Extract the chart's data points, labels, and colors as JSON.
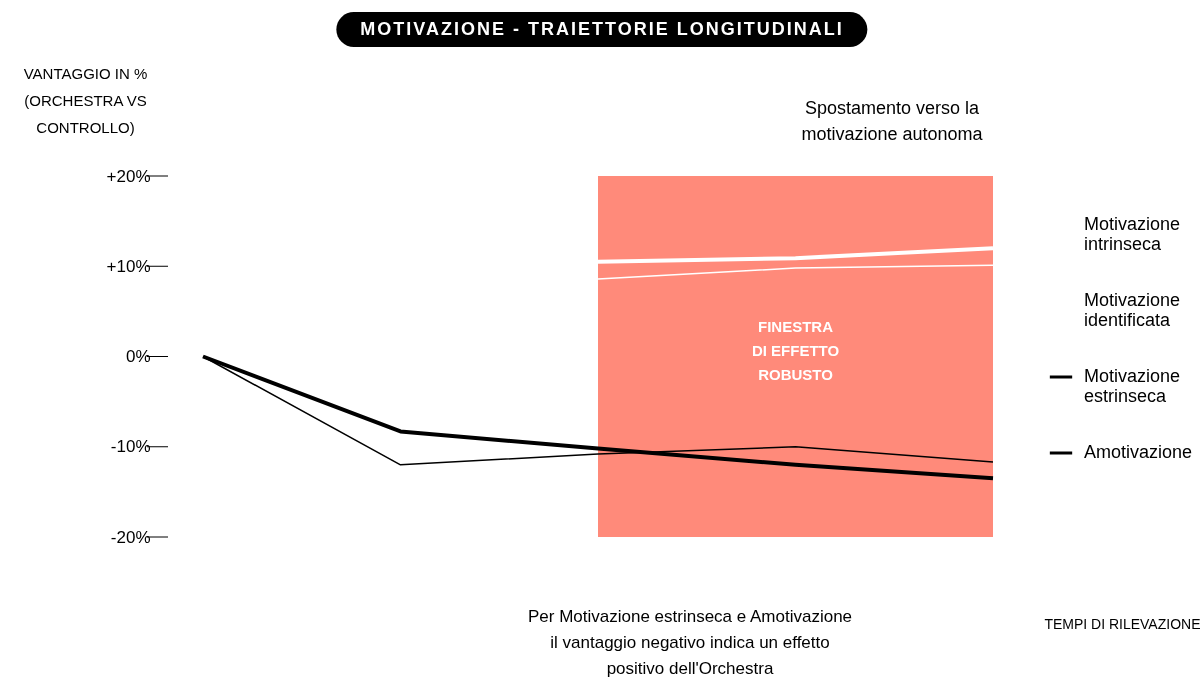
{
  "chart_data": {
    "type": "line",
    "title": "MOTIVAZIONE - TRAIETTORIE LONGITUDINALI",
    "ylabel": "VANTAGGIO IN % (ORCHESTRA VS CONTROLLO)",
    "xlabel": "TEMPI DI RILEVAZIONE",
    "categories": [
      null,
      null,
      null,
      null,
      null
    ],
    "ylim": [
      -20,
      20
    ],
    "yticks": [
      {
        "value": 20,
        "label": "+20%"
      },
      {
        "value": 10,
        "label": "+10%"
      },
      {
        "value": 0,
        "label": "0%"
      },
      {
        "value": -10,
        "label": "-10%"
      },
      {
        "value": -20,
        "label": "-20%"
      }
    ],
    "tick_labels": "y",
    "legend": "right",
    "series": [
      {
        "name": "Motivazione intrinseca",
        "color": "#ffffff",
        "values": [
          null,
          null,
          10.5,
          10.9,
          12
        ]
      },
      {
        "name": "Motivazione identificata",
        "color": "#ffffff",
        "values": [
          null,
          null,
          8.6,
          9.8,
          10.1
        ]
      },
      {
        "name": "Motivazione estrinseca",
        "color": "#000000",
        "values": [
          0,
          -12,
          -10.8,
          -10,
          -11.7
        ]
      },
      {
        "name": "Amotivazione",
        "color": "#000000",
        "values": [
          0,
          -8.3,
          -10.2,
          -12,
          -13.5
        ]
      }
    ],
    "annotations": [
      "Spostamento verso la motivazione autonoma",
      "FINESTRA DI EFFETTO ROBUSTO",
      "Per Motivazione estrinseca e Amotivazione il vantaggio negativo indica un effetto positivo dell'Orchestra"
    ]
  }
}
